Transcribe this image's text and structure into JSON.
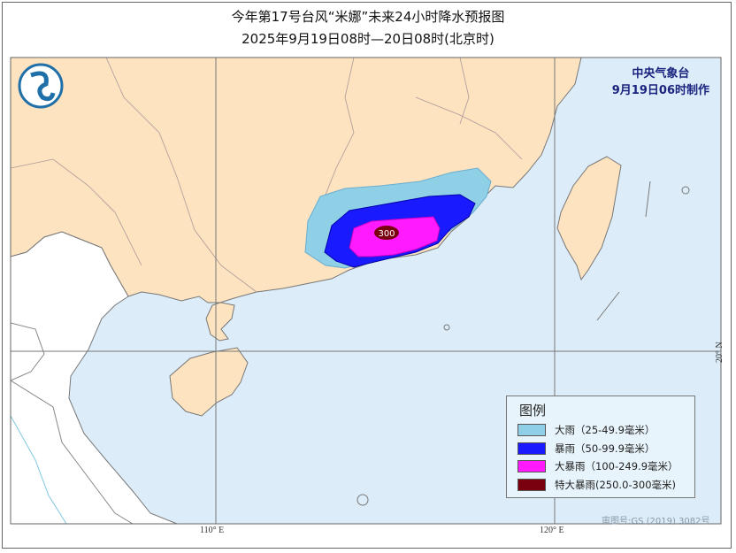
{
  "title": "今年第17号台风“米娜”未来24小时降水预报图",
  "subtitle": "2025年9月19日08时—20日08时(北京时)",
  "agency": {
    "name": "中央气象台",
    "issued": "9月19日06时制作"
  },
  "logo": "cma-logo",
  "legend": {
    "title": "图例",
    "items": [
      {
        "label": "大雨（25-49.9毫米）",
        "color": "#8fd0e6"
      },
      {
        "label": "暴雨（50-99.9毫米）",
        "color": "#1a1aff"
      },
      {
        "label": "大暴雨（100-249.9毫米）",
        "color": "#ff1aff"
      },
      {
        "label": "特大暴雨(250.0-300毫米)",
        "color": "#7a0010"
      }
    ]
  },
  "max_label": "300",
  "grid_labels": {
    "lon110": "110° E",
    "lon120": "120° E",
    "lat20": "20° N"
  },
  "map_review_number": "审图号:GS (2019) 3082号",
  "colors": {
    "china_land": "#fde3c0",
    "sea": "#dcedf9",
    "other_land": "#ffffff"
  }
}
